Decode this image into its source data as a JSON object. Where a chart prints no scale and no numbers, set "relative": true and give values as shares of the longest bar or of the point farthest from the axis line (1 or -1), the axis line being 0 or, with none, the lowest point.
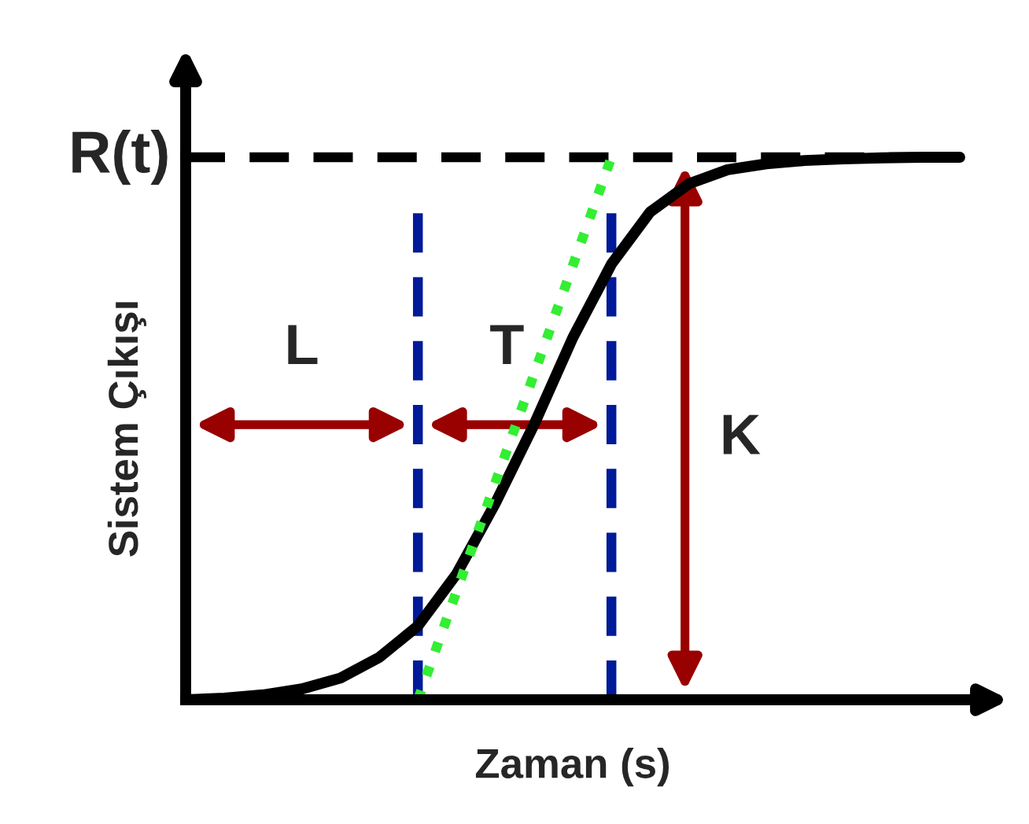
{
  "chart_data": {
    "type": "line",
    "relative": true,
    "xlabel": "Zaman (s)",
    "ylabel": "Sistem Çıkışı",
    "categories": [
      null,
      null,
      null,
      null,
      null,
      null,
      null,
      null,
      null,
      null,
      null,
      null,
      null,
      null,
      null,
      null,
      null,
      null,
      null,
      null,
      null
    ],
    "series": [
      {
        "color": "#000000",
        "line_style": "solid",
        "values": [
          0,
          0.003,
          0.009,
          0.02,
          0.04,
          0.078,
          0.136,
          0.232,
          0.362,
          0.507,
          0.667,
          0.803,
          0.899,
          0.951,
          0.977,
          0.988,
          0.994,
          0.997,
          0.999,
          1,
          1
        ]
      },
      {
        "color": "#33ee33",
        "line_style": "dotted",
        "values": [
          null,
          null,
          null,
          null,
          null,
          null,
          0,
          null,
          null,
          null,
          null,
          1,
          null,
          null,
          null,
          null,
          null,
          null,
          null,
          null,
          null
        ]
      }
    ],
    "ref_lines": [
      {
        "axis": "y",
        "value": 1,
        "label": "R(t)",
        "color": "#000000",
        "line_style": "dashed"
      }
    ],
    "annotations": [
      "L",
      "T",
      "K"
    ]
  }
}
